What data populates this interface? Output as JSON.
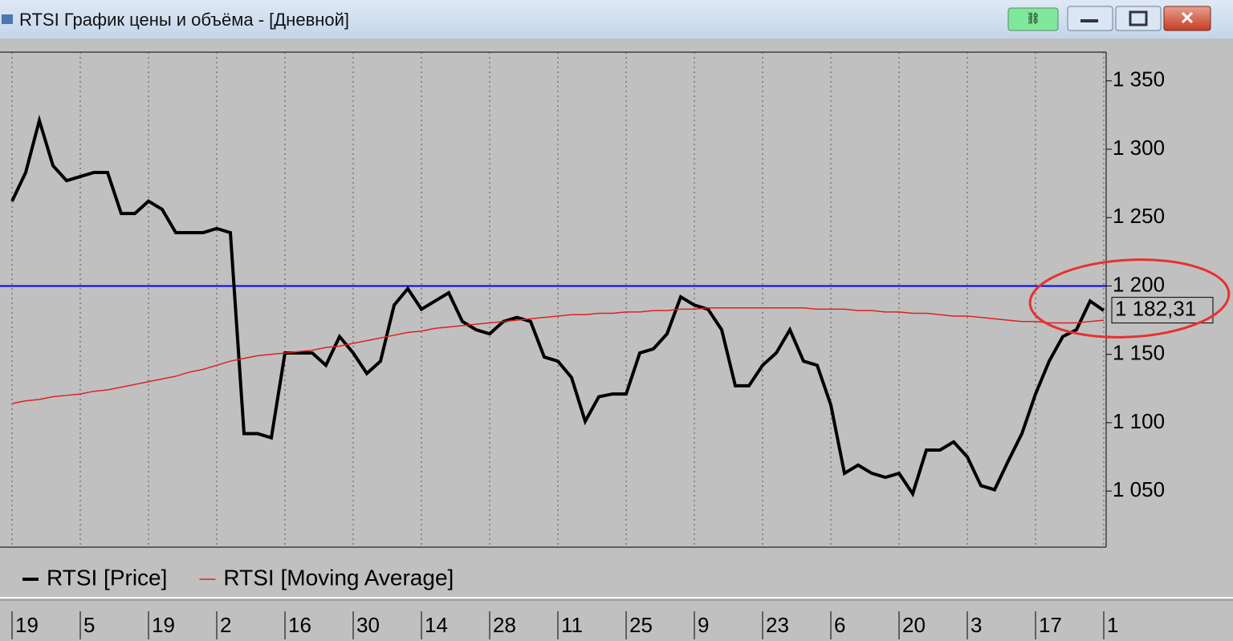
{
  "window": {
    "title": "RTSI График цены и объёма - [Дневной]"
  },
  "chart_data": {
    "type": "line",
    "categories": [
      "19",
      null,
      null,
      null,
      null,
      "5",
      null,
      null,
      null,
      null,
      "19",
      null,
      null,
      null,
      null,
      "2",
      null,
      null,
      null,
      null,
      "16",
      null,
      null,
      null,
      null,
      "30",
      null,
      null,
      null,
      null,
      "14",
      null,
      null,
      null,
      null,
      "28",
      null,
      null,
      null,
      null,
      "11",
      null,
      null,
      null,
      null,
      "25",
      null,
      null,
      null,
      null,
      "9",
      null,
      null,
      null,
      null,
      "23",
      null,
      null,
      null,
      null,
      "6",
      null,
      null,
      null,
      null,
      "20",
      null,
      null,
      null,
      null,
      "3",
      null,
      null,
      null,
      null,
      "17",
      null,
      null,
      null,
      null,
      "1"
    ],
    "series": [
      {
        "name": "RTSI [Price]",
        "color": "#000000",
        "values": [
          1262,
          1283,
          1321,
          1288,
          1277,
          1280,
          1283,
          1283,
          1253,
          1253,
          1262,
          1256,
          1239,
          1239,
          1239,
          1242,
          1239,
          1092,
          1092,
          1089,
          1151,
          1151,
          1151,
          1142,
          1163,
          1151,
          1136,
          1145,
          1186,
          1198,
          1183,
          1189,
          1195,
          1174,
          1168,
          1165,
          1174,
          1177,
          1174,
          1148,
          1145,
          1133,
          1101,
          1119,
          1121,
          1121,
          1151,
          1154,
          1165,
          1192,
          1186,
          1183,
          1168,
          1127,
          1127,
          1142,
          1151,
          1168,
          1145,
          1142,
          1113,
          1063,
          1069,
          1063,
          1060,
          1063,
          1048,
          1080,
          1080,
          1086,
          1075,
          1054,
          1051,
          1072,
          1092,
          1121,
          1145,
          1163,
          1168,
          1189,
          1182
        ]
      },
      {
        "name": "RTSI [Moving Average]",
        "color": "#e02020",
        "values": [
          1114,
          1116,
          1117,
          1119,
          1120,
          1121,
          1123,
          1124,
          1126,
          1128,
          1130,
          1132,
          1134,
          1137,
          1139,
          1142,
          1145,
          1147,
          1149,
          1150,
          1151,
          1152,
          1153,
          1155,
          1156,
          1158,
          1160,
          1162,
          1164,
          1166,
          1167,
          1169,
          1170,
          1171,
          1172,
          1173,
          1174,
          1175,
          1176,
          1177,
          1178,
          1179,
          1179,
          1180,
          1180,
          1181,
          1181,
          1182,
          1182,
          1183,
          1183,
          1184,
          1184,
          1184,
          1184,
          1184,
          1184,
          1184,
          1184,
          1183,
          1183,
          1183,
          1182,
          1182,
          1181,
          1181,
          1180,
          1180,
          1179,
          1178,
          1178,
          1177,
          1176,
          1175,
          1174,
          1174,
          1173,
          1173,
          1173,
          1174,
          1175
        ]
      }
    ],
    "ylim": [
      1009,
      1371
    ],
    "yticks": [
      {
        "value": 1050,
        "label": "1 050"
      },
      {
        "value": 1100,
        "label": "1 100"
      },
      {
        "value": 1150,
        "label": "1 150"
      },
      {
        "value": 1200,
        "label": "1 200"
      },
      {
        "value": 1250,
        "label": "1 250"
      },
      {
        "value": 1300,
        "label": "1 300"
      },
      {
        "value": 1350,
        "label": "1 350"
      }
    ],
    "level_line": {
      "value": 1200,
      "color": "#0000ff"
    },
    "last_price": {
      "value": 1182.31,
      "label": "1 182,31"
    },
    "grid": true
  }
}
